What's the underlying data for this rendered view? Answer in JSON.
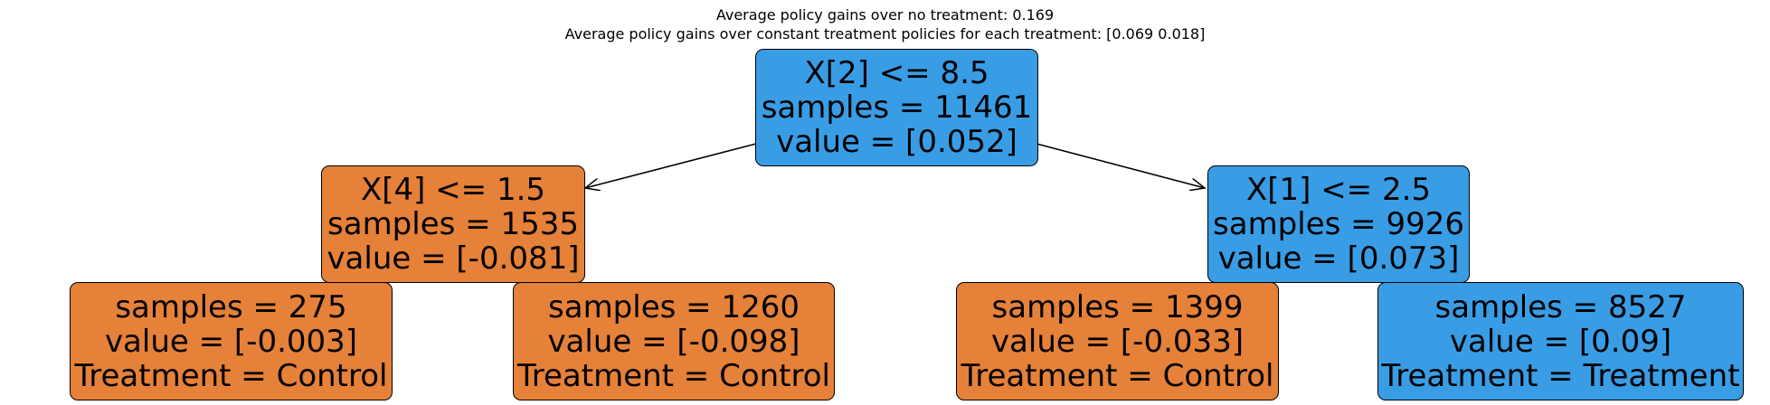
{
  "title_lines": [
    "Average policy gains over no treatment: 0.169",
    "Average policy gains over constant treatment policies for each treatment: [0.069 0.018]"
  ],
  "colors": {
    "blue": "#399de5",
    "orange": "#e58139"
  },
  "tree": {
    "root": {
      "lines": [
        "X[2] <= 8.5",
        "samples = 11461",
        "value = [0.052]"
      ],
      "color": "blue"
    },
    "left": {
      "lines": [
        "X[4] <= 1.5",
        "samples = 1535",
        "value = [-0.081]"
      ],
      "color": "orange"
    },
    "right": {
      "lines": [
        "X[1] <= 2.5",
        "samples = 9926",
        "value = [0.073]"
      ],
      "color": "blue"
    },
    "left_left": {
      "lines": [
        "samples = 275",
        "value = [-0.003]",
        "Treatment = Control"
      ],
      "color": "orange"
    },
    "left_right": {
      "lines": [
        "samples = 1260",
        "value = [-0.098]",
        "Treatment = Control"
      ],
      "color": "orange"
    },
    "right_left": {
      "lines": [
        "samples = 1399",
        "value = [-0.033]",
        "Treatment = Control"
      ],
      "color": "orange"
    },
    "right_right": {
      "lines": [
        "samples = 8527",
        "value = [0.09]",
        "Treatment = Treatment"
      ],
      "color": "blue"
    }
  }
}
